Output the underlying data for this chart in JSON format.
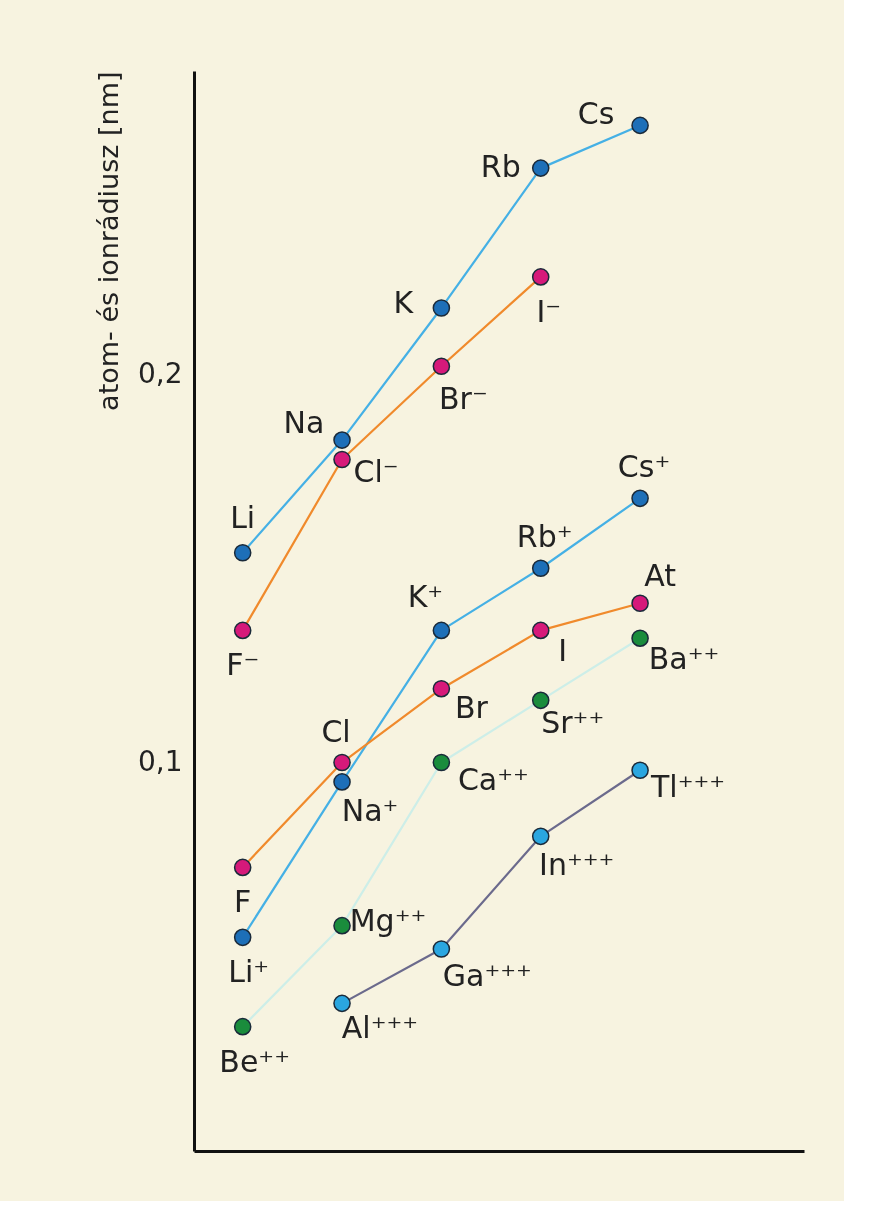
{
  "chart_data": {
    "type": "line",
    "ylabel": "atom- és ionrádiusz [nm]",
    "categories": [
      null,
      null,
      null,
      null,
      null
    ],
    "ylim": [
      0,
      0.278
    ],
    "yticks": [
      {
        "value": 0.1,
        "label": "0,1"
      },
      {
        "value": 0.2,
        "label": "0,2"
      }
    ],
    "tick_labels": "y",
    "grid": false,
    "marker": "circle",
    "line_style": "solid",
    "series": [
      {
        "color": "#45b0e5",
        "colors": [
          "#1d6fb8",
          "#1d6fb8",
          "#1d6fb8",
          "#1d6fb8",
          "#1d6fb8"
        ],
        "values": [
          0.154,
          0.183,
          0.217,
          0.253,
          0.264
        ],
        "value_labels": [
          "Li",
          "Na",
          "K",
          "Rb",
          "Cs"
        ]
      },
      {
        "color": "#f08a2c",
        "colors": [
          "#d6197a",
          "#d6197a",
          "#d6197a",
          "#d6197a",
          null
        ],
        "values": [
          0.134,
          0.178,
          0.202,
          0.225,
          null
        ],
        "value_labels": [
          "F⁻",
          "Cl⁻",
          "Br⁻",
          "I⁻",
          null
        ]
      },
      {
        "color": "#45b0e5",
        "colors": [
          "#1d6fb8",
          "#1d6fb8",
          "#1d6fb8",
          "#1d6fb8",
          "#1d6fb8"
        ],
        "values": [
          0.055,
          0.095,
          0.134,
          0.15,
          0.168
        ],
        "value_labels": [
          "Li⁺",
          "Na⁺",
          "K⁺",
          "Rb⁺",
          "Cs⁺"
        ]
      },
      {
        "color": "#f08a2c",
        "colors": [
          "#d6197a",
          "#d6197a",
          "#d6197a",
          "#d6197a",
          "#d6197a"
        ],
        "values": [
          0.073,
          0.1,
          0.119,
          0.134,
          0.141
        ],
        "value_labels": [
          "F",
          "Cl",
          "Br",
          "I",
          "At"
        ]
      },
      {
        "color": "#cdeee8",
        "colors": [
          "#1a8c3c",
          "#1a8c3c",
          "#1a8c3c",
          "#1a8c3c",
          "#1a8c3c"
        ],
        "values": [
          0.032,
          0.058,
          0.1,
          0.116,
          0.132
        ],
        "value_labels": [
          "Be⁺⁺",
          "Mg⁺⁺",
          "Ca⁺⁺",
          "Sr⁺⁺",
          "Ba⁺⁺"
        ]
      },
      {
        "color": "#6b6a8c",
        "colors": [
          null,
          "#2aa6e0",
          "#2aa6e0",
          "#2aa6e0",
          "#2aa6e0"
        ],
        "values": [
          null,
          0.038,
          0.052,
          0.081,
          0.098
        ],
        "value_labels": [
          null,
          "Al⁺⁺⁺",
          "Ga⁺⁺⁺",
          "In⁺⁺⁺",
          "Tl⁺⁺⁺"
        ]
      }
    ]
  }
}
